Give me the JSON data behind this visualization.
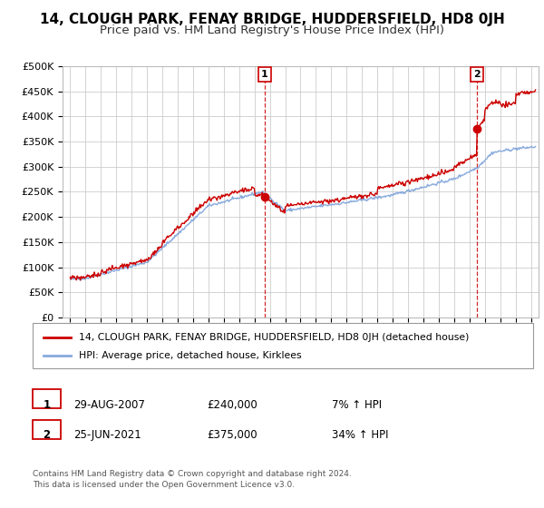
{
  "title": "14, CLOUGH PARK, FENAY BRIDGE, HUDDERSFIELD, HD8 0JH",
  "subtitle": "Price paid vs. HM Land Registry's House Price Index (HPI)",
  "ylabel_ticks": [
    "£0",
    "£50K",
    "£100K",
    "£150K",
    "£200K",
    "£250K",
    "£300K",
    "£350K",
    "£400K",
    "£450K",
    "£500K"
  ],
  "ytick_values": [
    0,
    50000,
    100000,
    150000,
    200000,
    250000,
    300000,
    350000,
    400000,
    450000,
    500000
  ],
  "ylim": [
    0,
    500000
  ],
  "xlim_start": 1994.5,
  "xlim_end": 2025.5,
  "sale1_date": 2007.66,
  "sale1_price": 240000,
  "sale1_label": "1",
  "sale2_date": 2021.48,
  "sale2_price": 375000,
  "sale2_label": "2",
  "red_line_color": "#cc0000",
  "blue_line_color": "#88aadd",
  "legend_red_label": "14, CLOUGH PARK, FENAY BRIDGE, HUDDERSFIELD, HD8 0JH (detached house)",
  "legend_blue_label": "HPI: Average price, detached house, Kirklees",
  "annotation1_date": "29-AUG-2007",
  "annotation1_price": "£240,000",
  "annotation1_hpi": "7% ↑ HPI",
  "annotation2_date": "25-JUN-2021",
  "annotation2_price": "£375,000",
  "annotation2_hpi": "34% ↑ HPI",
  "footer": "Contains HM Land Registry data © Crown copyright and database right 2024.\nThis data is licensed under the Open Government Licence v3.0.",
  "background_color": "#ffffff",
  "plot_bg_color": "#ffffff",
  "grid_color": "#cccccc",
  "title_fontsize": 11,
  "subtitle_fontsize": 9.5
}
